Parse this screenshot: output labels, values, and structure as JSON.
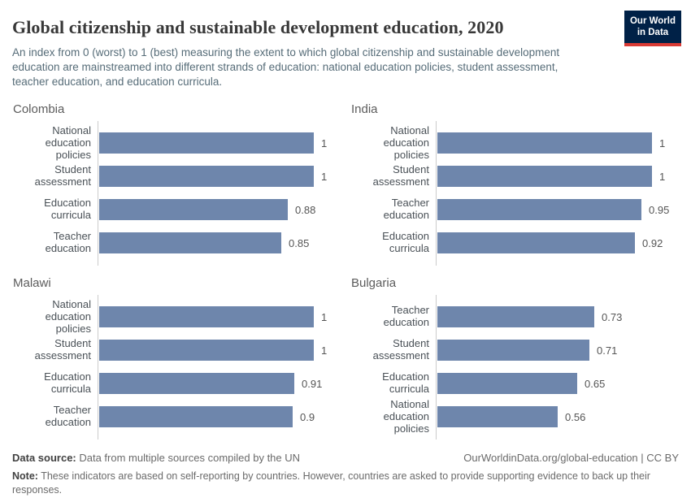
{
  "header": {
    "title": "Global citizenship and sustainable development education, 2020",
    "subtitle": "An index from 0 (worst) to 1 (best) measuring the extent to which global citizenship and sustainable development education are mainstreamed into different strands of education: national education policies, student assessment, teacher education, and education curricula.",
    "logo": {
      "line1": "Our World",
      "line2": "in Data",
      "bg_color": "#002147",
      "accent_color": "#d93a34"
    }
  },
  "colors": {
    "bar": "#6e86ac",
    "axis": "#cccccc"
  },
  "chart_data": [
    {
      "type": "bar",
      "orientation": "horizontal",
      "title": "Colombia",
      "categories": [
        "National education policies",
        "Student assessment",
        "Education curricula",
        "Teacher education"
      ],
      "values": [
        1,
        1,
        0.88,
        0.85
      ],
      "value_labels": [
        "1",
        "1",
        "0.88",
        "0.85"
      ],
      "xlim": [
        0,
        1
      ],
      "grid": false,
      "legend": false
    },
    {
      "type": "bar",
      "orientation": "horizontal",
      "title": "India",
      "categories": [
        "National education policies",
        "Student assessment",
        "Teacher education",
        "Education curricula"
      ],
      "values": [
        1,
        1,
        0.95,
        0.92
      ],
      "value_labels": [
        "1",
        "1",
        "0.95",
        "0.92"
      ],
      "xlim": [
        0,
        1
      ],
      "grid": false,
      "legend": false
    },
    {
      "type": "bar",
      "orientation": "horizontal",
      "title": "Malawi",
      "categories": [
        "National education policies",
        "Student assessment",
        "Education curricula",
        "Teacher education"
      ],
      "values": [
        1,
        1,
        0.91,
        0.9
      ],
      "value_labels": [
        "1",
        "1",
        "0.91",
        "0.9"
      ],
      "xlim": [
        0,
        1
      ],
      "grid": false,
      "legend": false
    },
    {
      "type": "bar",
      "orientation": "horizontal",
      "title": "Bulgaria",
      "categories": [
        "Teacher education",
        "Student assessment",
        "Education curricula",
        "National education policies"
      ],
      "values": [
        0.73,
        0.71,
        0.65,
        0.56
      ],
      "value_labels": [
        "0.73",
        "0.71",
        "0.65",
        "0.56"
      ],
      "xlim": [
        0,
        1
      ],
      "grid": false,
      "legend": false
    }
  ],
  "footer": {
    "data_source_label": "Data source:",
    "data_source_text": " Data from multiple sources compiled by the UN",
    "attribution": "OurWorldinData.org/global-education | CC BY",
    "note_label": "Note:",
    "note_text": " These indicators are based on self-reporting by countries. However, countries are asked to provide supporting evidence to back up their responses."
  }
}
